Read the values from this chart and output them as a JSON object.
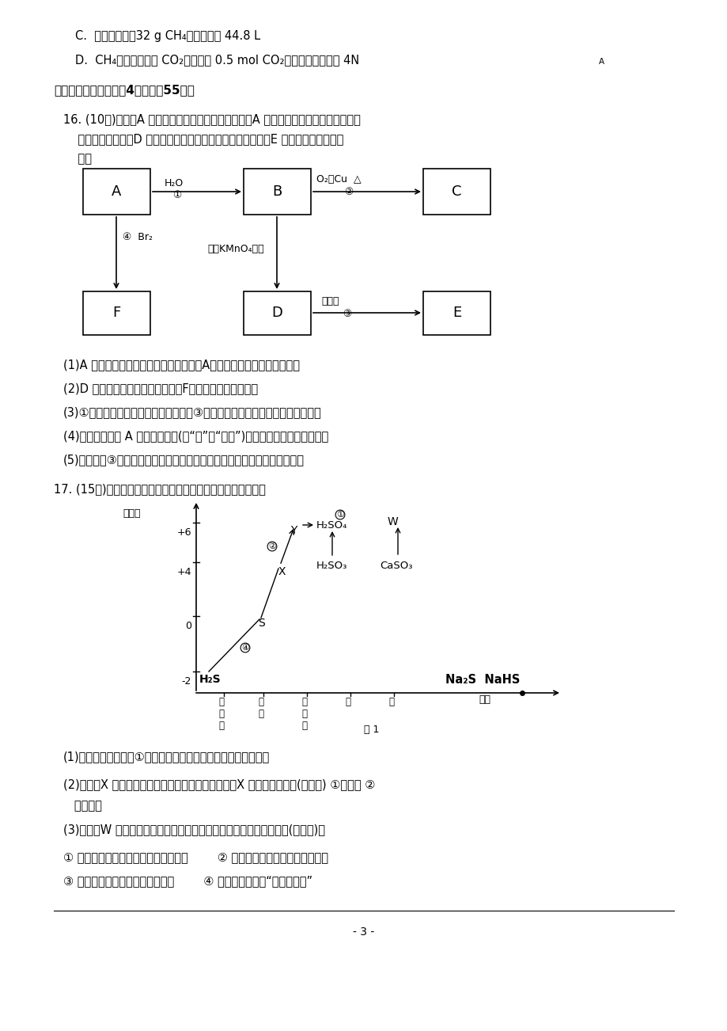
{
  "bg_color": "#ffffff",
  "page_width": 9.2,
  "page_height": 13.02,
  "line_C": "C.  标准状况下，32 g CH₄的体积约为 44.8 L",
  "line_D": "D.  CH₄完全燃烧生成 CO₂，若生成 0.5 mol CO₂，转移的电子数为 4N",
  "section2": "二、非选择题，本题共4小题，全55分。",
  "q16_h1": "16. (10分)已知：A 是来自石油的重要有机化工原料，A 的产量可以用来衡量一个国家石",
  "q16_h2": "    油化工发展水平，D 是日常生活中常用的调味品的主要成分，E 是具有果香味的有机",
  "q16_h3": "    物。",
  "q16_q1": "(1)A 分子中官能团名称是＿＿＿＿＿＿；A的电子式为＿＿＿＿＿＿＿。",
  "q16_q2": "(2)D 的结构简式是＿＿＿＿＿＿；F的名称是＿＿＿＿＿。",
  "q16_q3": "(3)①的有机化学反应类型为＿＿＿＿；③的有机化学反应类型为＿＿＿＿＿＿。",
  "q16_q4": "(4)当甲烷中混有 A 时，＿＿＿＿(填“能”或“不能”)用酸性高锴酸钔溢液除去。",
  "q16_q5": "(5)写出反应③的化学方程式：＿＿＿＿＿＿＿＿＿＿＿＿＿＿＿＿＿＿＿。",
  "q17_header": "17. (15分)依据图中硫元素及其化合物的转化关系，回答问题：",
  "q17_q1": "(1)图中，请写出反应①的离子方程式＿＿＿＿＿＿＿＿＿＿＿。",
  "q17_q2": "(2)图中，X 的化学式为＿＿＿＿＿，从化合价上看，X 具有＿＿＿＿＿(填数字) ①氧化性 ②",
  "q17_q2b": "   还原性。",
  "q17_q3": "(3)图中，W 在医疗上可用作石膏绢带，关于它的用途还有＿＿＿＿＿(填数字)。",
  "q17_opt1": "① 在工业上，可来调节水泥的硬化速率        ② 在食品中，可用来作营养强化剂",
  "q17_opt2": "③ 在美术上，可用来制作各种模型        ④ 在日常生活中，“卤水点豆腐”",
  "page_num": "- 3 -"
}
